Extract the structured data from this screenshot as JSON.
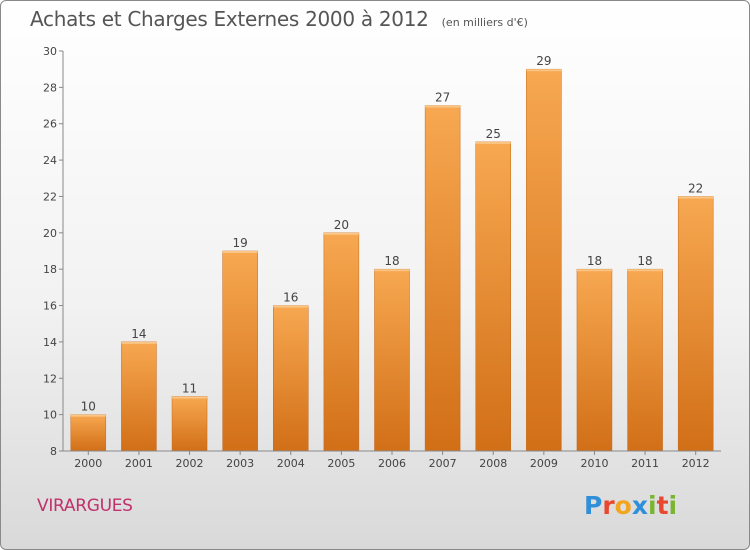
{
  "header": {
    "title": "Achats et Charges Externes 2000 à 2012",
    "subtitle": "(en milliers d'€)"
  },
  "footer": {
    "commune": "VIRARGUES",
    "logo_letters": [
      {
        "ch": "P",
        "color": "#2f8fd8"
      },
      {
        "ch": "r",
        "color": "#e8482e"
      },
      {
        "ch": "o",
        "color": "#f2a51f"
      },
      {
        "ch": "x",
        "color": "#2f8fd8"
      },
      {
        "ch": "i",
        "color": "#7ab532"
      },
      {
        "ch": "t",
        "color": "#e8482e"
      },
      {
        "ch": "i",
        "color": "#7ab532"
      }
    ]
  },
  "chart_data": {
    "type": "bar",
    "title": "Achats et Charges Externes 2000 à 2012",
    "subtitle": "(en milliers d'€)",
    "categories": [
      "2000",
      "2001",
      "2002",
      "2003",
      "2004",
      "2005",
      "2006",
      "2007",
      "2008",
      "2009",
      "2010",
      "2011",
      "2012"
    ],
    "values": [
      10,
      14,
      11,
      19,
      16,
      20,
      18,
      27,
      25,
      29,
      18,
      18,
      22
    ],
    "ylim": [
      8,
      30
    ],
    "yticks": [
      8,
      10,
      12,
      14,
      16,
      18,
      20,
      22,
      24,
      26,
      28,
      30
    ],
    "grid": false,
    "bar_color_top": "#f7a851",
    "bar_color_bottom": "#d16f17"
  }
}
